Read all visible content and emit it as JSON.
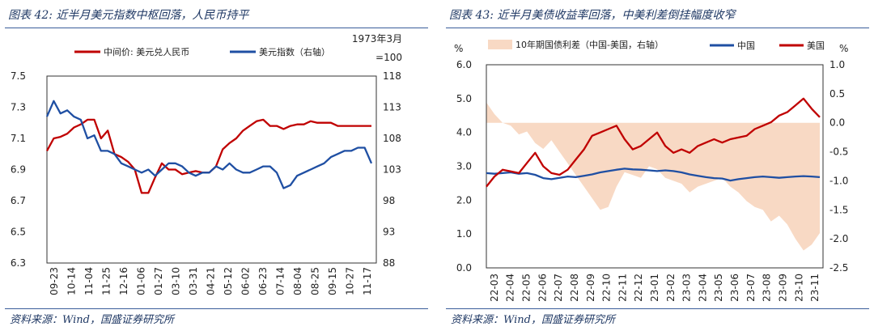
{
  "left_panel": {
    "title": "图表 42:  近半月美元指数中枢回落，人民币持平",
    "source": "资料来源：Wind，国盛证券研究所"
  },
  "right_panel": {
    "title": "图表 43:  近半月美债收益率回落，中美利差倒挂幅度收窄",
    "source": "资料来源：Wind，国盛证券研究所"
  },
  "chart_data": [
    {
      "type": "line",
      "title": "近半月美元指数中枢回落，人民币持平",
      "x_ticks": [
        "09-23",
        "10-14",
        "11-04",
        "11-25",
        "12-16",
        "01-06",
        "01-27",
        "03-10",
        "03-31",
        "04-21",
        "05-12",
        "06-02",
        "06-23",
        "07-14",
        "08-04",
        "08-25",
        "09-15",
        "10-27",
        "11-17"
      ],
      "y_left": {
        "lim": [
          6.3,
          7.5
        ],
        "ticks": [
          "6.3",
          "6.5",
          "6.7",
          "6.9",
          "7.1",
          "7.3",
          "7.5"
        ]
      },
      "y_right": {
        "lim": [
          88,
          118
        ],
        "ticks": [
          "88",
          "93",
          "98",
          "103",
          "108",
          "113",
          "118"
        ],
        "note_line1": "1973年3月",
        "note_line2": "=100"
      },
      "series": [
        {
          "name": "中间价: 美元兑人民币",
          "axis": "left",
          "color": "#c00000",
          "values": [
            7.02,
            7.1,
            7.11,
            7.13,
            7.17,
            7.19,
            7.22,
            7.22,
            7.1,
            7.15,
            7.0,
            6.98,
            6.95,
            6.9,
            6.75,
            6.75,
            6.85,
            6.94,
            6.9,
            6.9,
            6.87,
            6.88,
            6.89,
            6.88,
            6.88,
            6.92,
            7.03,
            7.07,
            7.1,
            7.15,
            7.18,
            7.21,
            7.22,
            7.18,
            7.18,
            7.16,
            7.18,
            7.19,
            7.19,
            7.21,
            7.2,
            7.2,
            7.2,
            7.18,
            7.18,
            7.18,
            7.18,
            7.18,
            7.18
          ]
        },
        {
          "name": "美元指数（右轴）",
          "axis": "right",
          "color": "#1f4fa3",
          "values": [
            111.5,
            114.0,
            112.0,
            112.5,
            111.5,
            111.0,
            108.0,
            108.5,
            106.0,
            106.0,
            105.5,
            104.0,
            103.5,
            103.0,
            102.5,
            103.0,
            102.0,
            103.0,
            104.0,
            104.0,
            103.5,
            102.5,
            102.0,
            102.5,
            102.5,
            103.5,
            103.0,
            104.0,
            103.0,
            102.5,
            102.5,
            103.0,
            103.5,
            103.5,
            102.5,
            100.0,
            100.5,
            102.0,
            102.5,
            103.0,
            103.5,
            104.0,
            105.0,
            105.5,
            106.0,
            106.0,
            106.5,
            106.5,
            104.0
          ]
        }
      ]
    },
    {
      "type": "line",
      "title": "近半月美债收益率回落，中美利差倒挂幅度收窄",
      "x_ticks": [
        "22-03",
        "22-04",
        "22-05",
        "22-06",
        "22-07",
        "22-08",
        "22-09",
        "22-10",
        "22-11",
        "22-12",
        "23-01",
        "23-02",
        "23-03",
        "23-04",
        "23-05",
        "23-06",
        "23-07",
        "23-08",
        "23-09",
        "23-10",
        "23-11"
      ],
      "y_left": {
        "lim": [
          0.0,
          6.0
        ],
        "ticks": [
          "0.0",
          "1.0",
          "2.0",
          "3.0",
          "4.0",
          "5.0",
          "6.0"
        ],
        "unit": "%"
      },
      "y_right": {
        "lim": [
          -2.5,
          1.0
        ],
        "ticks": [
          "-2.5",
          "-2.0",
          "-1.5",
          "-1.0",
          "-0.5",
          "0.0",
          "0.5",
          "1.0"
        ],
        "unit": "%"
      },
      "series": [
        {
          "name": "10年期国债利差（中国-美国，右轴）",
          "axis": "right",
          "kind": "area",
          "color": "#f8d9c4",
          "values": [
            0.35,
            0.15,
            0.0,
            -0.05,
            -0.2,
            -0.15,
            -0.35,
            -0.45,
            -0.3,
            -0.5,
            -0.7,
            -0.9,
            -1.1,
            -1.3,
            -1.5,
            -1.45,
            -1.1,
            -0.85,
            -0.9,
            -0.95,
            -0.75,
            -0.8,
            -0.95,
            -1.0,
            -1.05,
            -1.2,
            -1.1,
            -1.05,
            -1.0,
            -0.95,
            -1.1,
            -1.2,
            -1.35,
            -1.45,
            -1.5,
            -1.7,
            -1.6,
            -1.75,
            -2.0,
            -2.2,
            -2.1,
            -1.9
          ]
        },
        {
          "name": "中国",
          "axis": "left",
          "color": "#1f4fa3",
          "values": [
            2.8,
            2.78,
            2.8,
            2.82,
            2.78,
            2.8,
            2.75,
            2.65,
            2.62,
            2.66,
            2.7,
            2.68,
            2.72,
            2.76,
            2.82,
            2.86,
            2.9,
            2.93,
            2.91,
            2.9,
            2.88,
            2.86,
            2.88,
            2.86,
            2.82,
            2.76,
            2.72,
            2.68,
            2.65,
            2.64,
            2.58,
            2.62,
            2.65,
            2.68,
            2.7,
            2.68,
            2.66,
            2.68,
            2.7,
            2.71,
            2.7,
            2.68
          ]
        },
        {
          "name": "美国",
          "axis": "left",
          "color": "#c00000",
          "values": [
            2.4,
            2.7,
            2.9,
            2.85,
            2.8,
            3.1,
            3.4,
            3.0,
            2.8,
            2.75,
            2.9,
            3.2,
            3.5,
            3.9,
            4.0,
            4.1,
            4.2,
            3.8,
            3.5,
            3.6,
            3.8,
            4.0,
            3.6,
            3.4,
            3.5,
            3.4,
            3.6,
            3.7,
            3.8,
            3.7,
            3.8,
            3.85,
            3.9,
            4.1,
            4.2,
            4.3,
            4.5,
            4.6,
            4.8,
            5.0,
            4.7,
            4.45
          ]
        }
      ]
    }
  ]
}
